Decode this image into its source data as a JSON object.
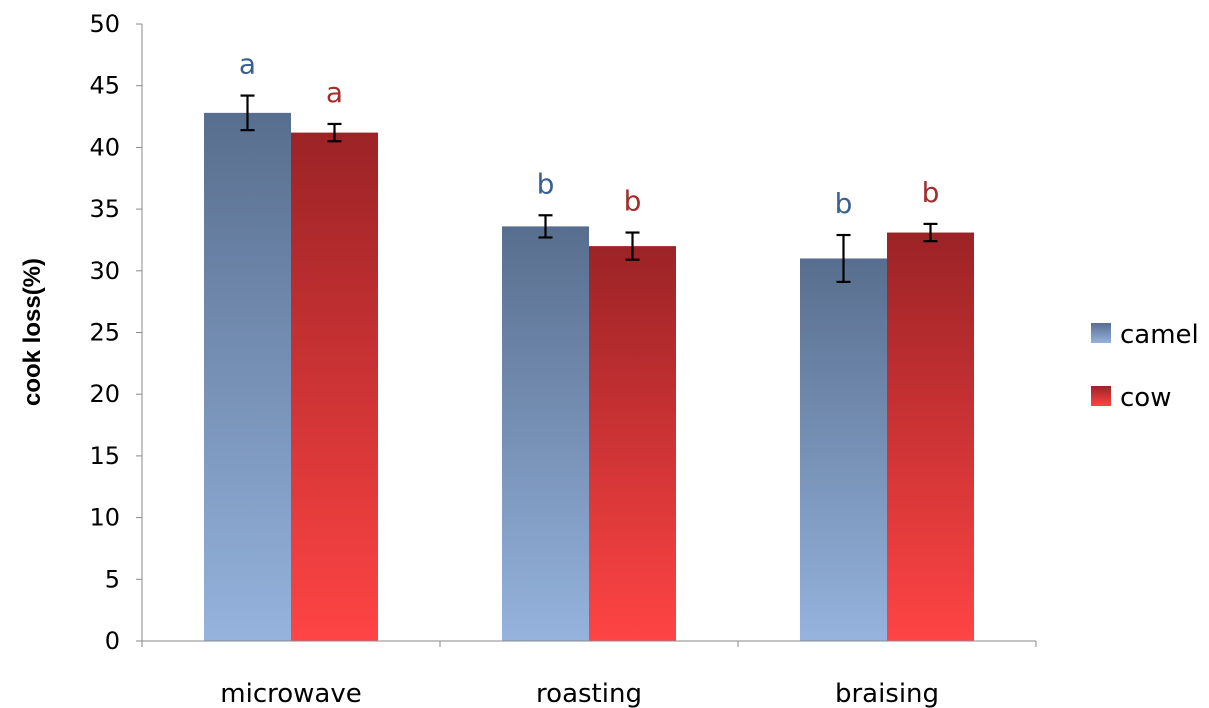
{
  "chart_data": {
    "type": "bar",
    "title": "",
    "xlabel": "",
    "ylabel": "cook loss(%)",
    "ylim": [
      0,
      50
    ],
    "yticks": [
      0,
      5,
      10,
      15,
      20,
      25,
      30,
      35,
      40,
      45,
      50
    ],
    "categories": [
      "microwave",
      "roasting",
      "braising"
    ],
    "series": [
      {
        "name": "camel",
        "values": [
          42.8,
          33.6,
          31.0
        ],
        "errors": [
          1.4,
          0.9,
          1.9
        ],
        "significance": [
          "a",
          "b",
          "b"
        ],
        "color_top": "#586e8e",
        "color_bottom": "#95b3dd",
        "label_color": "#3a5f91"
      },
      {
        "name": "cow",
        "values": [
          41.2,
          32.0,
          33.1
        ],
        "errors": [
          0.7,
          1.1,
          0.7
        ],
        "significance": [
          "a",
          "b",
          "b"
        ],
        "color_top": "#9b2326",
        "color_bottom": "#ff4444",
        "label_color": "#a12d2d"
      }
    ],
    "legend_position": "right",
    "grid": false
  }
}
